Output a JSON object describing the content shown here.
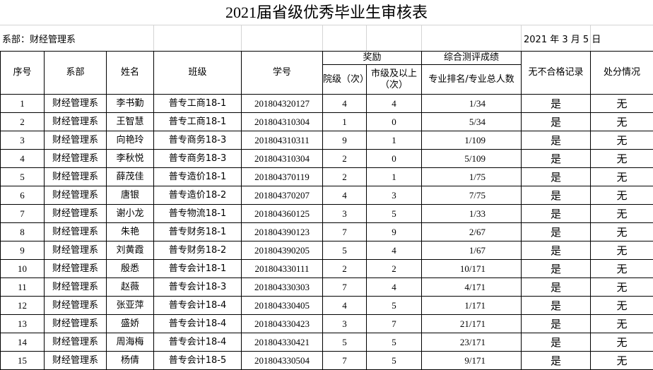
{
  "title": "2021届省级优秀毕业生审核表",
  "info": {
    "department": "系部：财经管理系",
    "date": "2021 年 3 月 5  日"
  },
  "headers": {
    "seq": "序号",
    "dept": "系部",
    "name": "姓名",
    "class": "班级",
    "id": "学号",
    "awards": "奖励",
    "college": "院级（次）",
    "city": "市级及以上（次）",
    "eval": "综合测评成绩",
    "rank": "专业排名/专业总人数",
    "nofail": "无不合格记录",
    "punish": "处分情况"
  },
  "rows": [
    {
      "seq": "1",
      "dept": "财经管理系",
      "name": "李书勤",
      "class": "普专工商18-1",
      "id": "201804320127",
      "college": "4",
      "city": "4",
      "rank": "1/34",
      "nofail": "是",
      "punish": "无"
    },
    {
      "seq": "2",
      "dept": "财经管理系",
      "name": "王智慧",
      "class": "普专工商18-1",
      "id": "201804310304",
      "college": "1",
      "city": "0",
      "rank": "5/34",
      "nofail": "是",
      "punish": "无"
    },
    {
      "seq": "3",
      "dept": "财经管理系",
      "name": "向艳玲",
      "class": "普专商务18-3",
      "id": "201804310311",
      "college": "9",
      "city": "1",
      "rank": "1/109",
      "nofail": "是",
      "punish": "无"
    },
    {
      "seq": "4",
      "dept": "财经管理系",
      "name": "李秋悦",
      "class": "普专商务18-3",
      "id": "201804310304",
      "college": "2",
      "city": "0",
      "rank": "5/109",
      "nofail": "是",
      "punish": "无"
    },
    {
      "seq": "5",
      "dept": "财经管理系",
      "name": "薛茂佳",
      "class": "普专造价18-1",
      "id": "201804370119",
      "college": "2",
      "city": "1",
      "rank": "1/75",
      "nofail": "是",
      "punish": "无"
    },
    {
      "seq": "6",
      "dept": "财经管理系",
      "name": "唐银",
      "class": "普专造价18-2",
      "id": "201804370207",
      "college": "4",
      "city": "3",
      "rank": "7/75",
      "nofail": "是",
      "punish": "无"
    },
    {
      "seq": "7",
      "dept": "财经管理系",
      "name": "谢小龙",
      "class": "普专物流18-1",
      "id": "201804360125",
      "college": "3",
      "city": "5",
      "rank": "1/33",
      "nofail": "是",
      "punish": "无"
    },
    {
      "seq": "8",
      "dept": "财经管理系",
      "name": "朱艳",
      "class": "普专财务18-1",
      "id": "201804390123",
      "college": "7",
      "city": "9",
      "rank": "2/67",
      "nofail": "是",
      "punish": "无"
    },
    {
      "seq": "9",
      "dept": "财经管理系",
      "name": "刘黄霞",
      "class": "普专财务18-2",
      "id": "201804390205",
      "college": "5",
      "city": "4",
      "rank": "1/67",
      "nofail": "是",
      "punish": "无"
    },
    {
      "seq": "10",
      "dept": "财经管理系",
      "name": "殷悉",
      "class": "普专会计18-1",
      "id": "201804330111",
      "college": "2",
      "city": "2",
      "rank": "10/171",
      "nofail": "是",
      "punish": "无"
    },
    {
      "seq": "11",
      "dept": "财经管理系",
      "name": "赵薇",
      "class": "普专会计18-3",
      "id": "201804330303",
      "college": "7",
      "city": "4",
      "rank": "4/171",
      "nofail": "是",
      "punish": "无"
    },
    {
      "seq": "12",
      "dept": "财经管理系",
      "name": "张亚萍",
      "class": "普专会计18-4",
      "id": "201804330405",
      "college": "4",
      "city": "5",
      "rank": "1/171",
      "nofail": "是",
      "punish": "无"
    },
    {
      "seq": "13",
      "dept": "财经管理系",
      "name": "盛娇",
      "class": "普专会计18-4",
      "id": "201804330423",
      "college": "3",
      "city": "7",
      "rank": "21/171",
      "nofail": "是",
      "punish": "无"
    },
    {
      "seq": "14",
      "dept": "财经管理系",
      "name": "周海梅",
      "class": "普专会计18-4",
      "id": "201804330421",
      "college": "5",
      "city": "5",
      "rank": "23/171",
      "nofail": "是",
      "punish": "无"
    },
    {
      "seq": "15",
      "dept": "财经管理系",
      "name": "杨倩",
      "class": "普专会计18-5",
      "id": "201804330504",
      "college": "7",
      "city": "5",
      "rank": "9/171",
      "nofail": "是",
      "punish": "无"
    }
  ]
}
